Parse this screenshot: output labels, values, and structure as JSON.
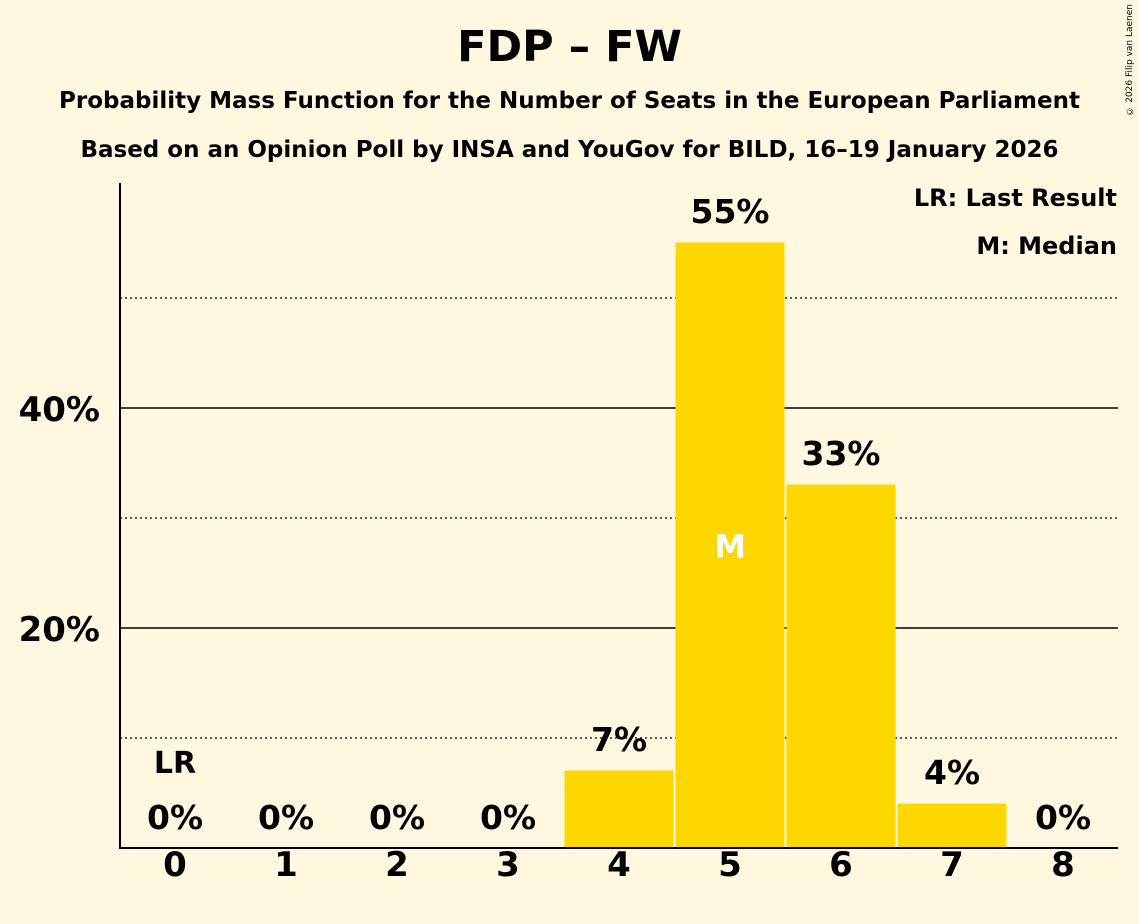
{
  "chart_data": {
    "type": "bar",
    "title": "FDP – FW",
    "subtitle_1": "Probability Mass Function for the Number of Seats in the European Parliament",
    "subtitle_2": "Based on an Opinion Poll by INSA and YouGov for BILD, 16–19 January 2026",
    "copyright": "© 2026 Filip van Laenen",
    "categories": [
      "0",
      "1",
      "2",
      "3",
      "4",
      "5",
      "6",
      "7",
      "8"
    ],
    "values": [
      0,
      0,
      0,
      0,
      7,
      55,
      33,
      4,
      0
    ],
    "value_labels": [
      "0%",
      "0%",
      "0%",
      "0%",
      "7%",
      "55%",
      "33%",
      "4%",
      "0%"
    ],
    "ylim": [
      0,
      60
    ],
    "y_ticks": [
      {
        "value": 20,
        "label": "20%"
      },
      {
        "value": 40,
        "label": "40%"
      }
    ],
    "y_minor_ticks": [
      10,
      30,
      50
    ],
    "last_result_seat": "0",
    "last_result_marker": "LR",
    "median_seat": "5",
    "median_marker": "M",
    "legend": [
      "LR: Last Result",
      "M: Median"
    ],
    "legend_position": "top-right",
    "bar_color": "#FFD700",
    "xlabel": "",
    "ylabel": ""
  }
}
